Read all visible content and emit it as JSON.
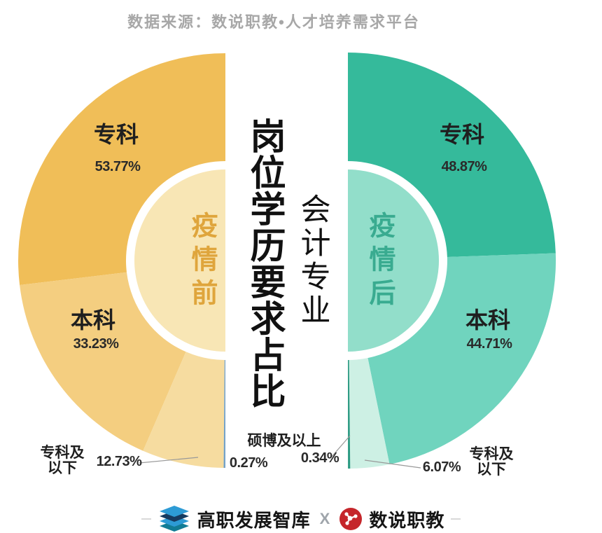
{
  "header": {
    "source_caption": "数据来源：数说职教•人才培养需求平台"
  },
  "center": {
    "title": "岗位学历要求占比",
    "subtitle": "会计专业"
  },
  "chart_data": {
    "type": "pie",
    "variant": "mirrored-half-donuts",
    "title": "岗位学历要求占比",
    "subtitle": "会计专业",
    "unit": "%",
    "legend_position": "labels-on-chart",
    "charts": [
      {
        "name": "疫情前",
        "position": "left",
        "inner_color": "#F8E6B5",
        "name_color": "#DFA53C",
        "segments": [
          {
            "label": "专科",
            "value": 53.77,
            "display": "53.77%",
            "color": "#F0BE58"
          },
          {
            "label": "本科",
            "value": 33.23,
            "display": "33.23%",
            "color": "#F4CE80"
          },
          {
            "label": "专科及以下",
            "value": 12.73,
            "display": "12.73%",
            "color": "#F6DCA0"
          },
          {
            "label": "硕博及以上",
            "value": 0.27,
            "display": "0.27%",
            "color": "#74A2C8"
          }
        ]
      },
      {
        "name": "疫情后",
        "position": "right",
        "inner_color": "#92DECA",
        "name_color": "#39AB90",
        "segments": [
          {
            "label": "专科",
            "value": 48.87,
            "display": "48.87%",
            "color": "#35BA9B"
          },
          {
            "label": "本科",
            "value": 44.71,
            "display": "44.71%",
            "color": "#70D4BE"
          },
          {
            "label": "专科及以下",
            "value": 6.07,
            "display": "6.07%",
            "color": "#CDF0E4"
          },
          {
            "label": "硕博及以上",
            "value": 0.34,
            "display": "0.34%",
            "color": "#2B9A82"
          }
        ]
      }
    ]
  },
  "footer": {
    "brand_left": "高职发展智库",
    "separator": "X",
    "brand_right": "数说职教",
    "icons": {
      "left_logo": "stacked-layers-icon",
      "right_logo": "red-network-icon"
    },
    "colors": {
      "layers_blue": "#2D9BD5",
      "layers_navy": "#163A5F",
      "layers_teal": "#127C95",
      "badge_red": "#C5262B"
    }
  }
}
